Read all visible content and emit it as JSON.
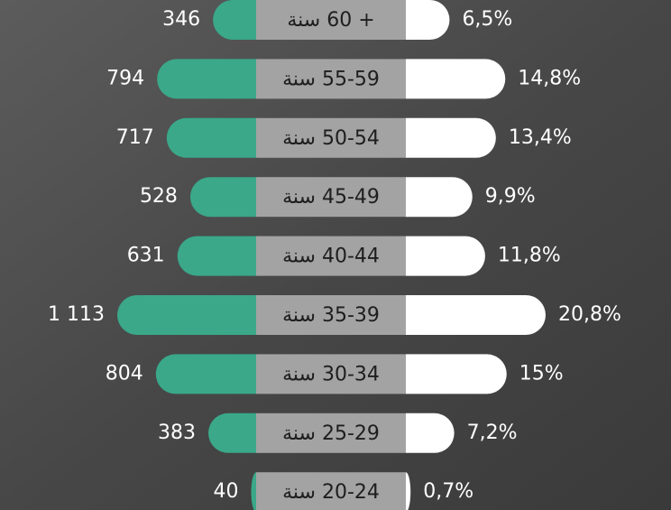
{
  "chart_data": {
    "type": "butterfly",
    "categories": [
      "+ 60 سنة",
      "55-59 سنة",
      "50-54 سنة",
      "45-49 سنة",
      "40-44 سنة",
      "35-39 سنة",
      "30-34 سنة",
      "25-29 سنة",
      "20-24 سنة"
    ],
    "series": [
      {
        "color": "#3aa889",
        "values": [
          346,
          794,
          717,
          528,
          631,
          1113,
          804,
          383,
          40
        ],
        "value_labels": [
          "346",
          "794",
          "717",
          "528",
          "631",
          "1 113",
          "804",
          "383",
          "40"
        ]
      },
      {
        "color": "#ffffff",
        "values": [
          6.5,
          14.8,
          13.4,
          9.9,
          11.8,
          20.8,
          15,
          7.2,
          0.7
        ],
        "value_labels": [
          "6,5%",
          "14,8%",
          "13,4%",
          "9,9%",
          "11,8%",
          "20,8%",
          "15%",
          "7,2%",
          "0,7%"
        ]
      }
    ]
  }
}
